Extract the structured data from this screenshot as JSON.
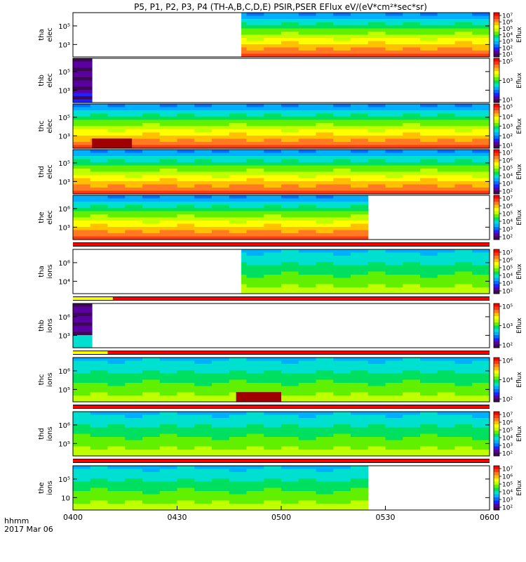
{
  "title": "P5, P1, P2, P3, P4 (TH-A,B,C,D,E) PSIR,PSER EFlux eV/(eV*cm²*sec*sr)",
  "colorbar_label": "Eflux",
  "colors": {
    "spectrum": [
      "#ffffff",
      "#3c0a50",
      "#5a00a0",
      "#2020ff",
      "#0070ff",
      "#00b0ff",
      "#00e0d0",
      "#00e060",
      "#60f000",
      "#c0ff00",
      "#ffff00",
      "#ffc000",
      "#ff7a20",
      "#ff3a10",
      "#ff0000",
      "#a00000"
    ],
    "stripe_red": "#ff0000",
    "stripe_yellow": "#ffff00",
    "stripe_black": "#000000"
  },
  "xaxis": {
    "tick_labels": [
      "0400",
      "0430",
      "0500",
      "0530",
      "0600"
    ],
    "corner_label_1": "hhmm",
    "corner_label_2": "2017 Mar 06"
  },
  "chart_data": [
    {
      "type": "heatmap",
      "ylabel_1": "tha",
      "ylabel_2": "elec",
      "ytick_labels": [
        "10⁵",
        "10³"
      ],
      "cbar_ticks": [
        "10⁷",
        "10⁶",
        "10⁵",
        "10⁴",
        "10³",
        "10²",
        "10¹"
      ],
      "cbar_minmax": [
        1,
        7
      ],
      "data_start_min": 48.5,
      "data_end_min": 120,
      "gap_min": null,
      "low_energy_block": null
    },
    {
      "type": "heatmap",
      "ylabel_1": "thb",
      "ylabel_2": "elec",
      "ytick_labels": [
        "10⁵",
        "10³"
      ],
      "cbar_ticks": [
        "10⁵",
        "10³",
        "10¹"
      ],
      "cbar_minmax": [
        1,
        5.5
      ],
      "data_start_min": 0,
      "data_end_min": 5.5,
      "gap_min": null,
      "low_energy_block": null
    },
    {
      "type": "heatmap",
      "ylabel_1": "thc",
      "ylabel_2": "elec",
      "ytick_labels": [
        "10⁵",
        "10³"
      ],
      "cbar_ticks": [
        "10⁵",
        "10⁴",
        "10³",
        "10²",
        "10¹"
      ],
      "cbar_minmax": [
        1,
        5.5
      ],
      "data_start_min": 0,
      "data_end_min": 120,
      "gap_min": [
        114,
        118
      ],
      "low_energy_block": [
        5.5,
        17,
        "#a00000"
      ]
    },
    {
      "type": "heatmap",
      "ylabel_1": "thd",
      "ylabel_2": "elec",
      "ytick_labels": [
        "10⁵",
        "10³"
      ],
      "cbar_ticks": [
        "10⁷",
        "10⁶",
        "10⁵",
        "10⁴",
        "10³",
        "10²"
      ],
      "cbar_minmax": [
        2,
        7
      ],
      "data_start_min": 0,
      "data_end_min": 120,
      "gap_min": null,
      "low_energy_block": null
    },
    {
      "type": "heatmap",
      "ylabel_1": "the",
      "ylabel_2": "elec",
      "ytick_labels": [
        "10⁶",
        "10³"
      ],
      "cbar_ticks": [
        "10⁷",
        "10⁶",
        "10⁵",
        "10⁴",
        "10³",
        "10²"
      ],
      "cbar_minmax": [
        2,
        7
      ],
      "data_start_min": 0,
      "data_end_min": 85,
      "gap_min": null,
      "low_energy_block": null
    },
    {
      "type": "heatmap",
      "ylabel_1": "tha",
      "ylabel_2": "ions",
      "ytick_labels": [
        "10⁶",
        "10⁴"
      ],
      "cbar_ticks": [
        "10⁷",
        "10⁶",
        "10⁵",
        "10⁴",
        "10³",
        "10²"
      ],
      "cbar_minmax": [
        2,
        7
      ],
      "data_start_min": 48.5,
      "data_end_min": 120,
      "gap_min": null,
      "low_energy_block": null
    },
    {
      "type": "heatmap",
      "ylabel_1": "thb",
      "ylabel_2": "ions",
      "ytick_labels": [
        "10⁶",
        "10³"
      ],
      "cbar_ticks": [
        "10⁵",
        "10³",
        "10²"
      ],
      "cbar_minmax": [
        2,
        5.5
      ],
      "data_start_min": 0,
      "data_end_min": 5.5,
      "gap_min": null,
      "low_energy_block": null
    },
    {
      "type": "heatmap",
      "ylabel_1": "thc",
      "ylabel_2": "ions",
      "ytick_labels": [
        "10⁶",
        "10⁵"
      ],
      "cbar_ticks": [
        "10⁶",
        "10⁴",
        "10²"
      ],
      "cbar_minmax": [
        2,
        6.5
      ],
      "data_start_min": 0,
      "data_end_min": 120,
      "gap_min": null,
      "low_energy_block": [
        47,
        60,
        "#a00000"
      ]
    },
    {
      "type": "heatmap",
      "ylabel_1": "thd",
      "ylabel_2": "ions",
      "ytick_labels": [
        "10⁶",
        "10⁵"
      ],
      "cbar_ticks": [
        "10⁷",
        "10⁶",
        "10⁵",
        "10⁴",
        "10³",
        "10²"
      ],
      "cbar_minmax": [
        2,
        7
      ],
      "data_start_min": 0,
      "data_end_min": 120,
      "gap_min": null,
      "low_energy_block": null
    },
    {
      "type": "heatmap",
      "ylabel_1": "the",
      "ylabel_2": "ions",
      "ytick_labels": [
        "10⁵",
        "10⁳"
      ],
      "cbar_ticks": [
        "10⁷",
        "10⁶",
        "10⁵",
        "10⁴",
        "10³",
        "10²"
      ],
      "cbar_minmax": [
        2,
        7
      ],
      "data_start_min": 0,
      "data_end_min": 85,
      "gap_min": null,
      "low_energy_block": null
    }
  ],
  "status_bars": [
    {
      "after_panel": 4,
      "segments": [
        [
          0,
          120,
          "stripe_red"
        ]
      ]
    },
    {
      "after_panel": 5,
      "segments": [
        [
          0,
          11.5,
          "stripe_yellow"
        ],
        [
          11.5,
          120,
          "stripe_red"
        ]
      ]
    },
    {
      "after_panel": 6,
      "segments": [
        [
          0,
          10,
          "stripe_yellow"
        ],
        [
          10,
          120,
          "stripe_red"
        ]
      ]
    },
    {
      "after_panel": 7,
      "segments": [
        [
          0,
          120,
          "stripe_red"
        ]
      ]
    },
    {
      "after_panel": 8,
      "segments": [
        [
          0,
          120,
          "stripe_red"
        ]
      ]
    }
  ]
}
